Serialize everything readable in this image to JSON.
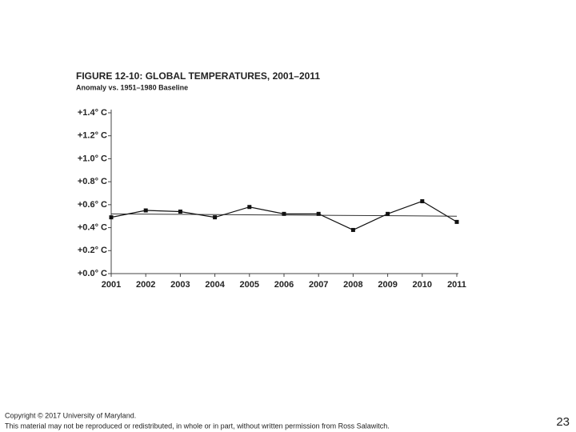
{
  "chart_data": {
    "type": "line",
    "title": "FIGURE 12-10: GLOBAL TEMPERATURES, 2001–2011",
    "subtitle": "Anomaly vs. 1951–1980 Baseline",
    "x": [
      2001,
      2002,
      2003,
      2004,
      2005,
      2006,
      2007,
      2008,
      2009,
      2010,
      2011
    ],
    "values": [
      0.49,
      0.55,
      0.54,
      0.49,
      0.58,
      0.52,
      0.52,
      0.38,
      0.52,
      0.63,
      0.45
    ],
    "color": "#111111",
    "trend_line": {
      "x": [
        2001,
        2011
      ],
      "values": [
        0.52,
        0.5
      ]
    },
    "xlim": [
      2001,
      2011
    ],
    "xticks": [
      2001,
      2002,
      2003,
      2004,
      2005,
      2006,
      2007,
      2008,
      2009,
      2010,
      2011
    ],
    "ylim": [
      0,
      1.4
    ],
    "yticks": [
      {
        "value": 0,
        "label": "+0.0° C"
      },
      {
        "value": 0.2,
        "label": "+0.2° C"
      },
      {
        "value": 0.4,
        "label": "+0.4° C"
      },
      {
        "value": 0.6,
        "label": "+0.6° C"
      },
      {
        "value": 0.8,
        "label": "+0.8° C"
      },
      {
        "value": 1.0,
        "label": "+1.0° C"
      },
      {
        "value": 1.2,
        "label": "+1.2° C"
      },
      {
        "value": 1.4,
        "label": "+1.4° C"
      }
    ],
    "grid": false
  },
  "footer": {
    "line1": "Copyright © 2017 University of Maryland.",
    "line2": "This material may not be reproduced or redistributed, in whole or in part, without written permission from Ross Salawitch."
  },
  "page_number": "23"
}
